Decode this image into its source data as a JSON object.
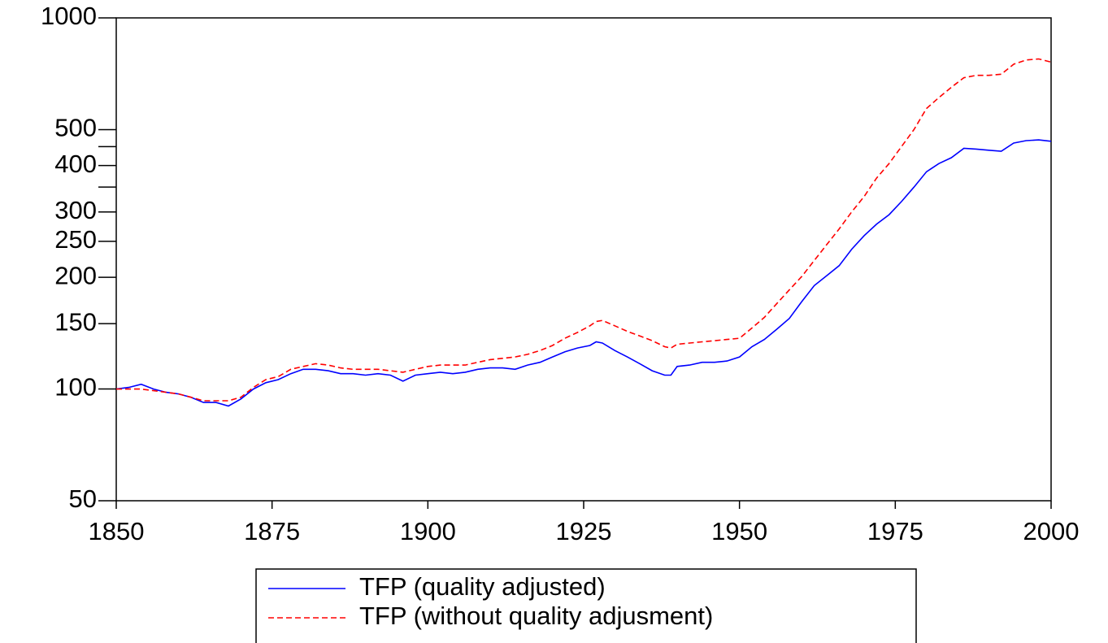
{
  "chart_data": {
    "type": "line",
    "x": [
      1850,
      1852,
      1854,
      1856,
      1858,
      1860,
      1862,
      1864,
      1866,
      1868,
      1870,
      1872,
      1874,
      1876,
      1878,
      1880,
      1882,
      1884,
      1886,
      1888,
      1890,
      1892,
      1894,
      1896,
      1898,
      1900,
      1902,
      1904,
      1906,
      1908,
      1910,
      1912,
      1914,
      1916,
      1918,
      1920,
      1922,
      1924,
      1926,
      1927,
      1928,
      1930,
      1932,
      1934,
      1936,
      1938,
      1939,
      1940,
      1942,
      1944,
      1946,
      1948,
      1950,
      1952,
      1954,
      1956,
      1958,
      1960,
      1962,
      1964,
      1966,
      1968,
      1970,
      1972,
      1974,
      1976,
      1978,
      1980,
      1982,
      1984,
      1986,
      1988,
      1990,
      1992,
      1994,
      1996,
      1998,
      2000
    ],
    "series": [
      {
        "name": "TFP (quality adjusted)",
        "color": "#0000ff",
        "dash": "solid",
        "values": [
          100,
          101,
          103,
          100,
          98,
          97,
          95,
          92,
          92,
          90,
          94,
          100,
          104,
          106,
          110,
          113,
          113,
          112,
          110,
          110,
          109,
          110,
          109,
          105,
          109,
          110,
          111,
          110,
          111,
          113,
          114,
          114,
          113,
          116,
          118,
          122,
          126,
          129,
          131,
          134,
          133,
          127,
          122,
          117,
          112,
          109,
          109,
          115,
          116,
          118,
          118,
          119,
          122,
          130,
          136,
          145,
          155,
          172,
          190,
          202,
          215,
          238,
          259,
          278,
          295,
          320,
          350,
          385,
          405,
          420,
          445,
          443,
          440,
          437,
          460,
          467,
          469,
          465
        ]
      },
      {
        "name": "TFP (without quality adjusment)",
        "color": "#ff0000",
        "dash": "dashed",
        "values": [
          100,
          100,
          100,
          99,
          98,
          97,
          95,
          93,
          93,
          93,
          95,
          101,
          106,
          108,
          113,
          115,
          117,
          116,
          114,
          113,
          113,
          113,
          112,
          111,
          113,
          115,
          116,
          116,
          116,
          118,
          120,
          121,
          122,
          124,
          127,
          131,
          137,
          142,
          148,
          152,
          153,
          148,
          143,
          139,
          135,
          130,
          129,
          132,
          133,
          134,
          135,
          136,
          137,
          146,
          156,
          170,
          185,
          201,
          222,
          245,
          270,
          300,
          330,
          370,
          405,
          450,
          500,
          570,
          610,
          650,
          690,
          700,
          700,
          705,
          750,
          770,
          775,
          760
        ]
      }
    ],
    "xlim": [
      1850,
      2000
    ],
    "xticks": [
      1850,
      1875,
      1900,
      1925,
      1950,
      1975,
      2000
    ],
    "ylim": [
      50,
      1000
    ],
    "yscale": "log",
    "yticks": [
      50,
      100,
      150,
      200,
      250,
      300,
      400,
      500,
      1000
    ],
    "yminor": [
      350,
      450
    ]
  }
}
